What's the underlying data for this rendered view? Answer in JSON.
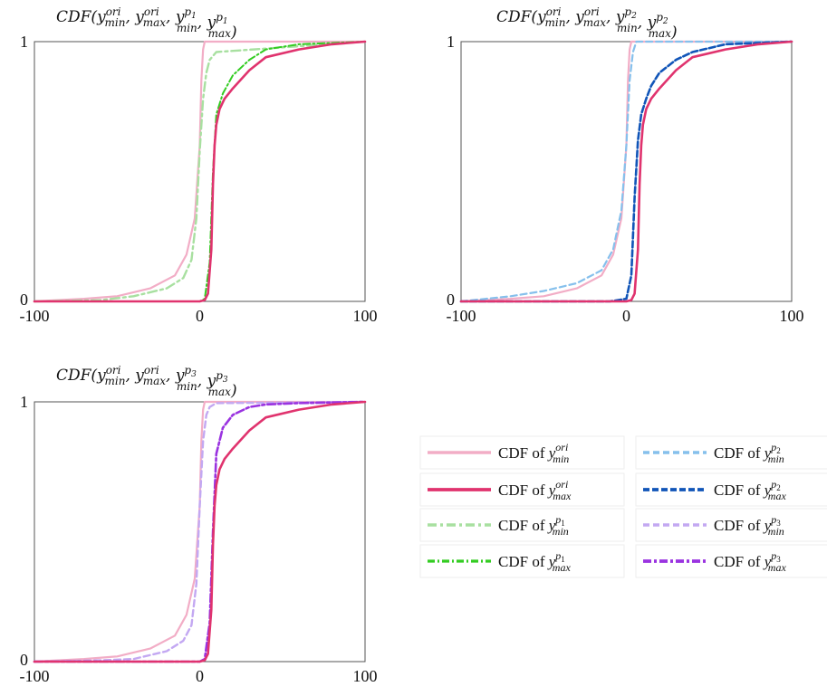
{
  "colors": {
    "ori_min": "#f2adc6",
    "ori_max": "#e0336e",
    "p1_min": "#a8e0a0",
    "p1_max": "#33cc22",
    "p2_min": "#86c0ec",
    "p2_max": "#1155b8",
    "p3_min": "#c3a8f2",
    "p3_max": "#9a33e0"
  },
  "legend": {
    "prefix": "CDF of",
    "items": [
      {
        "key": "ori_min",
        "var": "y",
        "sup": "ori",
        "sub": "min",
        "style": "solid"
      },
      {
        "key": "p2_min",
        "var": "y",
        "sup": "p",
        "supsub": "2",
        "sub": "min",
        "style": "dash"
      },
      {
        "key": "ori_max",
        "var": "y",
        "sup": "ori",
        "sub": "max",
        "style": "solid-thick"
      },
      {
        "key": "p2_max",
        "var": "y",
        "sup": "p",
        "supsub": "2",
        "sub": "max",
        "style": "dash-thick"
      },
      {
        "key": "p1_min",
        "var": "y",
        "sup": "p",
        "supsub": "1",
        "sub": "min",
        "style": "dashdot"
      },
      {
        "key": "p3_min",
        "var": "y",
        "sup": "p",
        "supsub": "3",
        "sub": "min",
        "style": "dash"
      },
      {
        "key": "p1_max",
        "var": "y",
        "sup": "p",
        "supsub": "1",
        "sub": "max",
        "style": "dashdot-thin"
      },
      {
        "key": "p3_max",
        "var": "y",
        "sup": "p",
        "supsub": "3",
        "sub": "max",
        "style": "dashdot-thick"
      }
    ]
  },
  "chart_data": [
    {
      "type": "line",
      "title": "CDF(y^ori_min, y^ori_max, y^p1_min, y^p1_max)",
      "title_p": "1",
      "xlim": [
        -100,
        100
      ],
      "ylim": [
        0,
        1
      ],
      "xticks": [
        "-100",
        "0",
        "100"
      ],
      "yticks": [
        "0",
        "1"
      ],
      "series": [
        {
          "name": "CDF of y^ori_min",
          "key": "ori_min",
          "x": [
            -100,
            -70,
            -50,
            -30,
            -15,
            -8,
            -3,
            0,
            1,
            2,
            3,
            100
          ],
          "y": [
            0,
            0.01,
            0.02,
            0.05,
            0.1,
            0.18,
            0.32,
            0.6,
            0.85,
            0.97,
            1,
            1
          ]
        },
        {
          "name": "CDF of y^p1_min",
          "key": "p1_min",
          "x": [
            -100,
            -60,
            -40,
            -20,
            -10,
            -5,
            -2,
            0,
            2,
            4,
            6,
            10,
            100
          ],
          "y": [
            0,
            0.005,
            0.02,
            0.05,
            0.09,
            0.16,
            0.32,
            0.58,
            0.78,
            0.88,
            0.93,
            0.96,
            1
          ]
        },
        {
          "name": "CDF of y^p1_max",
          "key": "p1_max",
          "x": [
            -100,
            -50,
            -20,
            0,
            3,
            6,
            8,
            10,
            14,
            20,
            30,
            40,
            60,
            100
          ],
          "y": [
            0,
            0,
            0,
            0,
            0.01,
            0.15,
            0.5,
            0.72,
            0.8,
            0.87,
            0.93,
            0.97,
            0.99,
            1
          ]
        },
        {
          "name": "CDF of y^ori_max",
          "key": "ori_max",
          "x": [
            -100,
            -20,
            0,
            3,
            5,
            7,
            8,
            9,
            10,
            12,
            15,
            20,
            30,
            40,
            60,
            80,
            100
          ],
          "y": [
            0,
            0,
            0,
            0.005,
            0.03,
            0.2,
            0.45,
            0.6,
            0.68,
            0.74,
            0.78,
            0.82,
            0.89,
            0.94,
            0.97,
            0.99,
            1
          ]
        }
      ]
    },
    {
      "type": "line",
      "title": "CDF(y^ori_min, y^ori_max, y^p2_min, y^p2_max)",
      "title_p": "2",
      "xlim": [
        -100,
        100
      ],
      "ylim": [
        0,
        1
      ],
      "xticks": [
        "-100",
        "0",
        "100"
      ],
      "yticks": [
        "0",
        "1"
      ],
      "series": [
        {
          "name": "CDF of y^ori_min",
          "key": "ori_min",
          "x": [
            -100,
            -70,
            -50,
            -30,
            -15,
            -8,
            -3,
            0,
            1,
            2,
            3,
            100
          ],
          "y": [
            0,
            0.01,
            0.02,
            0.05,
            0.1,
            0.18,
            0.32,
            0.6,
            0.85,
            0.97,
            1,
            1
          ]
        },
        {
          "name": "CDF of y^p2_min",
          "key": "p2_min",
          "x": [
            -100,
            -70,
            -50,
            -30,
            -15,
            -8,
            -3,
            0,
            2,
            4,
            6,
            100
          ],
          "y": [
            0,
            0.02,
            0.04,
            0.07,
            0.12,
            0.2,
            0.35,
            0.6,
            0.85,
            0.96,
            1,
            1
          ]
        },
        {
          "name": "CDF of y^p2_max",
          "key": "p2_max",
          "x": [
            -100,
            -20,
            -10,
            0,
            3,
            5,
            7,
            9,
            12,
            15,
            20,
            30,
            40,
            60,
            100
          ],
          "y": [
            0,
            0,
            0,
            0.01,
            0.1,
            0.4,
            0.62,
            0.72,
            0.78,
            0.83,
            0.88,
            0.93,
            0.96,
            0.99,
            1
          ]
        },
        {
          "name": "CDF of y^ori_max",
          "key": "ori_max",
          "x": [
            -100,
            -20,
            0,
            3,
            5,
            7,
            8,
            9,
            10,
            12,
            15,
            20,
            30,
            40,
            60,
            80,
            100
          ],
          "y": [
            0,
            0,
            0,
            0.005,
            0.03,
            0.2,
            0.45,
            0.6,
            0.68,
            0.74,
            0.78,
            0.82,
            0.89,
            0.94,
            0.97,
            0.99,
            1
          ]
        }
      ]
    },
    {
      "type": "line",
      "title": "CDF(y^ori_min, y^ori_max, y^p3_min, y^p3_max)",
      "title_p": "3",
      "xlim": [
        -100,
        100
      ],
      "ylim": [
        0,
        1
      ],
      "xticks": [
        "-100",
        "0",
        "100"
      ],
      "yticks": [
        "0",
        "1"
      ],
      "series": [
        {
          "name": "CDF of y^ori_min",
          "key": "ori_min",
          "x": [
            -100,
            -70,
            -50,
            -30,
            -15,
            -8,
            -3,
            0,
            1,
            2,
            3,
            100
          ],
          "y": [
            0,
            0.01,
            0.02,
            0.05,
            0.1,
            0.18,
            0.32,
            0.6,
            0.85,
            0.97,
            1,
            1
          ]
        },
        {
          "name": "CDF of y^p3_min",
          "key": "p3_min",
          "x": [
            -100,
            -60,
            -40,
            -20,
            -10,
            -5,
            -2,
            0,
            2,
            4,
            6,
            10,
            100
          ],
          "y": [
            0,
            0.005,
            0.01,
            0.04,
            0.08,
            0.14,
            0.3,
            0.6,
            0.85,
            0.95,
            0.98,
            0.995,
            1
          ]
        },
        {
          "name": "CDF of y^p3_max",
          "key": "p3_max",
          "x": [
            -100,
            -50,
            -20,
            0,
            3,
            6,
            8,
            10,
            14,
            20,
            30,
            40,
            60,
            100
          ],
          "y": [
            0,
            0,
            0,
            0,
            0.01,
            0.15,
            0.5,
            0.8,
            0.9,
            0.95,
            0.98,
            0.99,
            0.995,
            1
          ]
        },
        {
          "name": "CDF of y^ori_max",
          "key": "ori_max",
          "x": [
            -100,
            -20,
            0,
            3,
            5,
            7,
            8,
            9,
            10,
            12,
            15,
            20,
            30,
            40,
            60,
            80,
            100
          ],
          "y": [
            0,
            0,
            0,
            0.005,
            0.03,
            0.2,
            0.45,
            0.6,
            0.68,
            0.74,
            0.78,
            0.82,
            0.89,
            0.94,
            0.97,
            0.99,
            1
          ]
        }
      ]
    }
  ]
}
